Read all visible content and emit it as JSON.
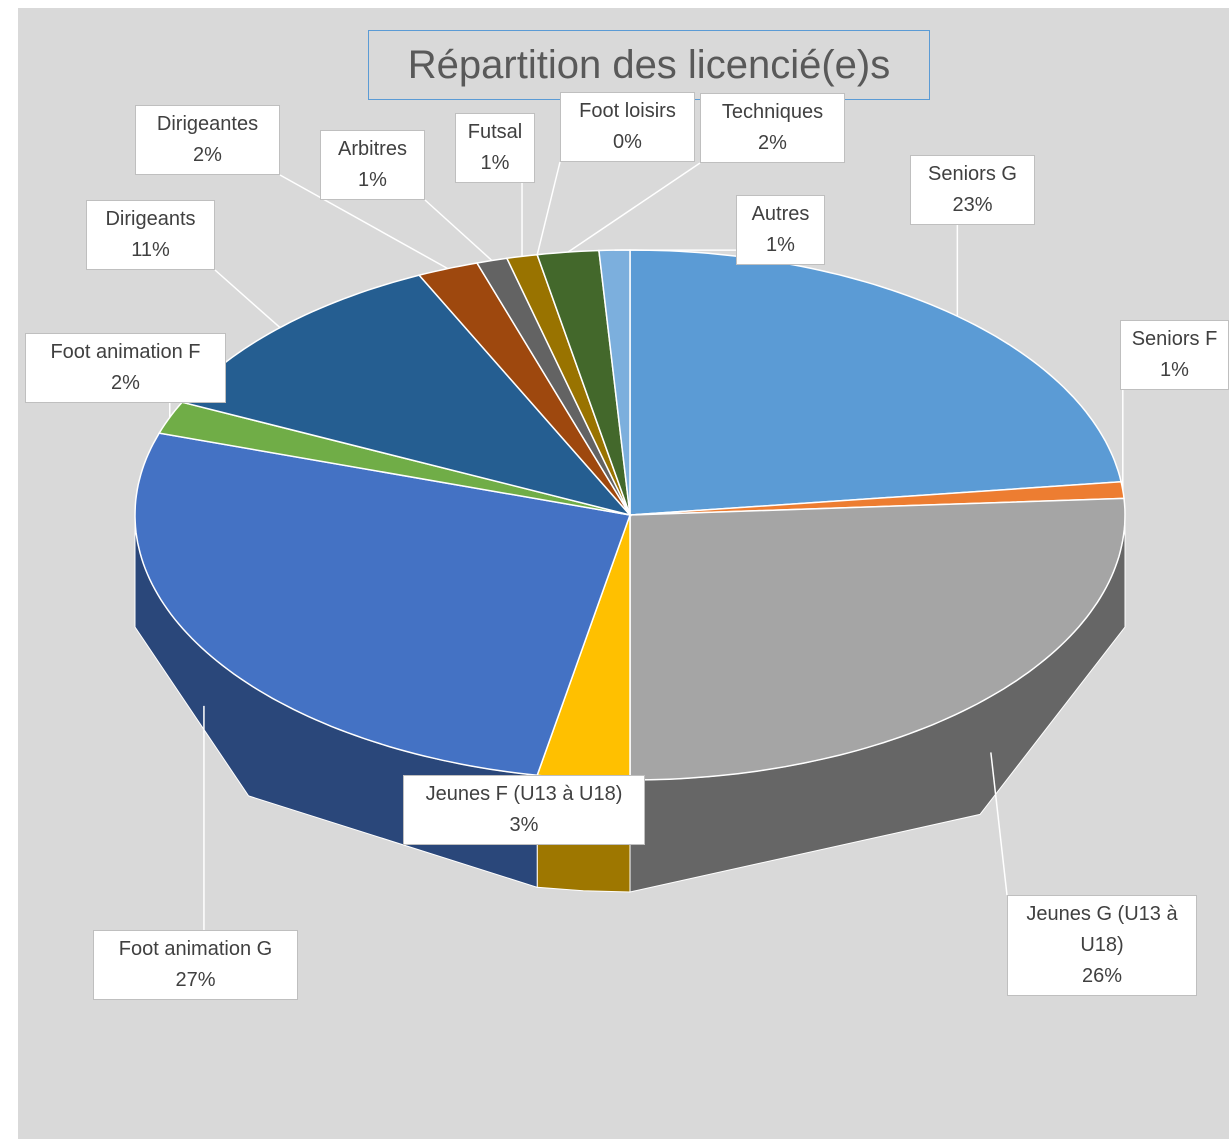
{
  "chart_data": {
    "type": "pie3d",
    "title": "Répartition des licencié(e)s",
    "categories": [
      "Seniors G",
      "Seniors F",
      "Jeunes G (U13 à U18)",
      "Jeunes F (U13 à U18)",
      "Foot animation G",
      "Foot animation F",
      "Dirigeants",
      "Dirigeantes",
      "Arbitres",
      "Futsal",
      "Foot loisirs",
      "Techniques",
      "Autres"
    ],
    "values": [
      23,
      1,
      26,
      3,
      27,
      2,
      11,
      2,
      1,
      1,
      0,
      2,
      1
    ],
    "value_labels": [
      "23%",
      "1%",
      "26%",
      "3%",
      "27%",
      "2%",
      "11%",
      "2%",
      "1%",
      "1%",
      "0%",
      "2%",
      "1%"
    ],
    "colors": [
      "#5b9bd5",
      "#ed7d31",
      "#a5a5a5",
      "#ffc000",
      "#4472c4",
      "#70ad47",
      "#255e91",
      "#9e480e",
      "#636363",
      "#997300",
      "#264478",
      "#43682b",
      "#7cafdd"
    ]
  }
}
